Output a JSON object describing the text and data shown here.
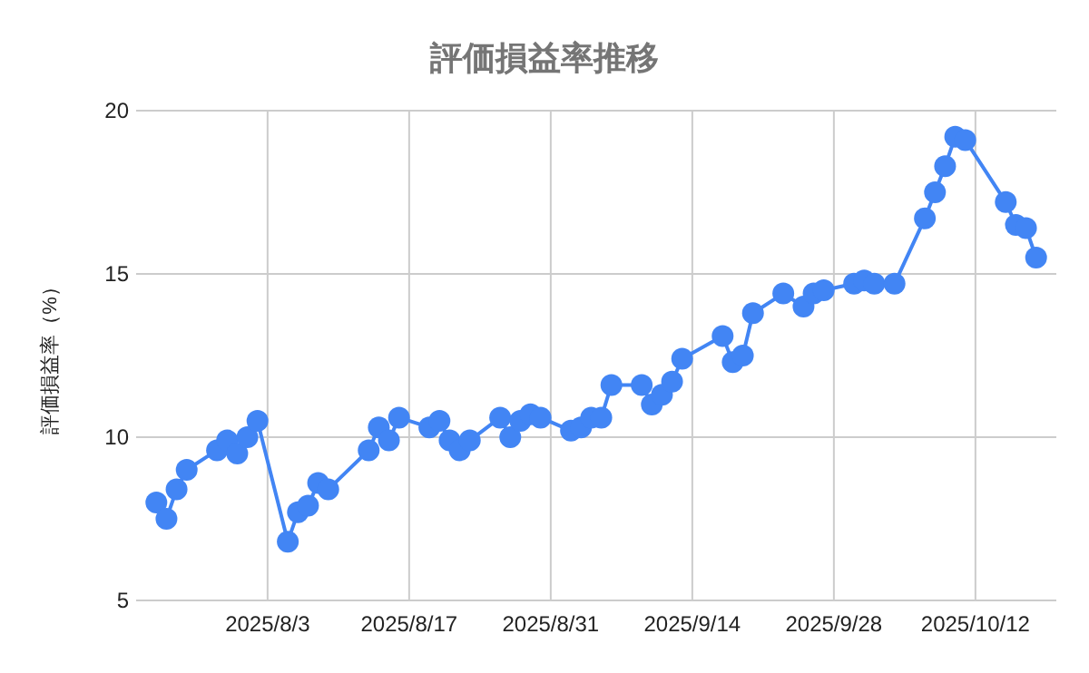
{
  "chart_data": {
    "type": "line",
    "title": "評価損益率推移",
    "ylabel": "評価損益率（%）",
    "x": [
      "2025-07-23",
      "2025-07-24",
      "2025-07-25",
      "2025-07-26",
      "2025-07-29",
      "2025-07-30",
      "2025-07-31",
      "2025-08-01",
      "2025-08-02",
      "2025-08-05",
      "2025-08-06",
      "2025-08-07",
      "2025-08-08",
      "2025-08-09",
      "2025-08-13",
      "2025-08-14",
      "2025-08-15",
      "2025-08-16",
      "2025-08-19",
      "2025-08-20",
      "2025-08-21",
      "2025-08-22",
      "2025-08-23",
      "2025-08-26",
      "2025-08-27",
      "2025-08-28",
      "2025-08-29",
      "2025-08-30",
      "2025-09-02",
      "2025-09-03",
      "2025-09-04",
      "2025-09-05",
      "2025-09-06",
      "2025-09-09",
      "2025-09-10",
      "2025-09-11",
      "2025-09-12",
      "2025-09-13",
      "2025-09-17",
      "2025-09-18",
      "2025-09-19",
      "2025-09-20",
      "2025-09-23",
      "2025-09-25",
      "2025-09-26",
      "2025-09-27",
      "2025-09-30",
      "2025-10-01",
      "2025-10-02",
      "2025-10-04",
      "2025-10-07",
      "2025-10-08",
      "2025-10-09",
      "2025-10-10",
      "2025-10-11",
      "2025-10-15",
      "2025-10-16",
      "2025-10-17",
      "2025-10-18"
    ],
    "series": [
      {
        "color": "#4285f4",
        "values": [
          8.0,
          7.5,
          8.4,
          9.0,
          9.6,
          9.9,
          9.5,
          10.0,
          10.5,
          6.8,
          7.7,
          7.9,
          8.6,
          8.4,
          9.6,
          10.3,
          9.9,
          10.6,
          10.3,
          10.5,
          9.9,
          9.6,
          9.9,
          10.6,
          10.0,
          10.5,
          10.7,
          10.6,
          10.2,
          10.3,
          10.6,
          10.6,
          11.6,
          11.6,
          11.0,
          11.3,
          11.7,
          12.4,
          13.1,
          12.3,
          12.5,
          13.8,
          14.4,
          14.0,
          14.4,
          14.5,
          14.7,
          14.8,
          14.7,
          14.7,
          16.7,
          17.5,
          18.3,
          19.2,
          19.1,
          17.2,
          16.5,
          16.4,
          15.5
        ]
      }
    ],
    "xlim": [
      "2025-07-21",
      "2025-10-20"
    ],
    "ylim": [
      5,
      20
    ],
    "yticks": [
      5,
      10,
      15,
      20
    ],
    "xticks": [
      {
        "value": "2025-08-03",
        "label": "2025/8/3"
      },
      {
        "value": "2025-08-17",
        "label": "2025/8/17"
      },
      {
        "value": "2025-08-31",
        "label": "2025/8/31"
      },
      {
        "value": "2025-09-14",
        "label": "2025/9/14"
      },
      {
        "value": "2025-09-28",
        "label": "2025/9/28"
      },
      {
        "value": "2025-10-12",
        "label": "2025/10/12"
      }
    ],
    "grid": true,
    "marker": "circle",
    "line_style": "solid"
  }
}
